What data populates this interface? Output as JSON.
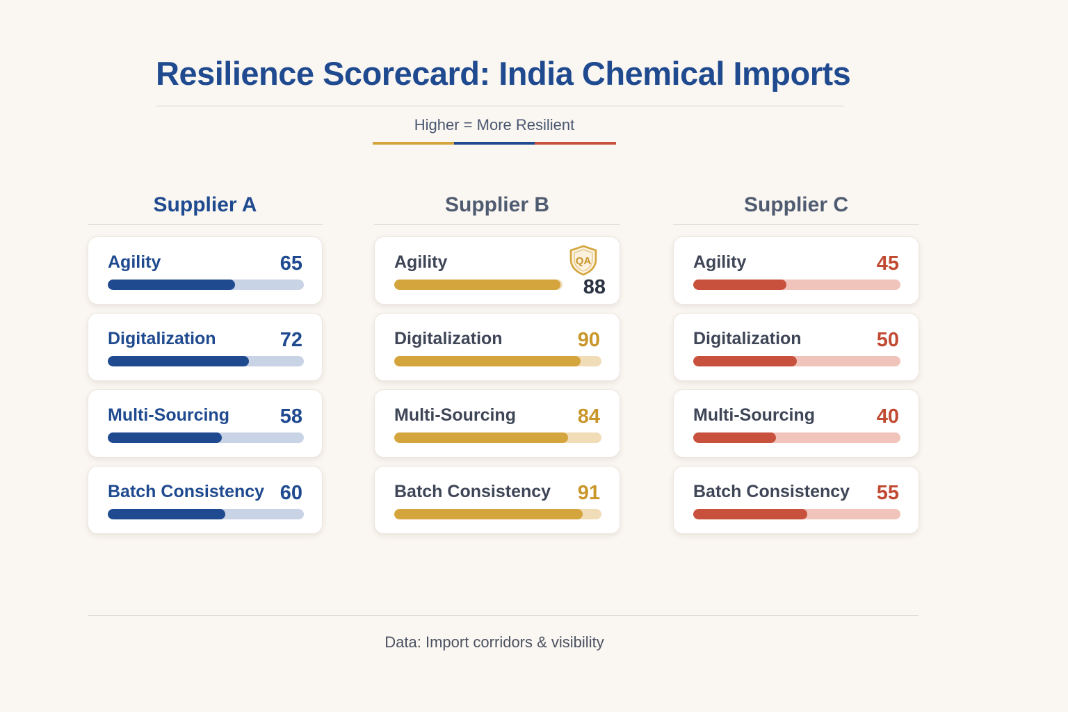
{
  "header": {
    "title": "Resilience Scorecard: India Chemical Imports",
    "subtitle": "Higher = More Resilient",
    "rule_colors": [
      "#d4a53d",
      "#1f4a8f",
      "#c8513d"
    ]
  },
  "badge": {
    "label": "QA",
    "icon": "shield-qa-icon"
  },
  "footer": {
    "note": "Data: Import corridors & visibility"
  },
  "chart_data": {
    "type": "bar",
    "title": "Resilience Scorecard: India Chemical Imports",
    "subtitle": "Higher = More Resilient",
    "categories": [
      "Agility",
      "Digitalization",
      "Multi-Sourcing",
      "Batch Consistency"
    ],
    "ylim": [
      0,
      100
    ],
    "series": [
      {
        "name": "Supplier A",
        "values": [
          65,
          72,
          58,
          60
        ],
        "color": "#1f4a8f",
        "track": "#c9d3e6",
        "head_color": "#1f4a8f",
        "label_color": "#1f4a8f",
        "value_color": "#1f4a8f"
      },
      {
        "name": "Supplier B",
        "values": [
          88,
          90,
          84,
          91
        ],
        "color": "#d4a53d",
        "track": "#f1dcb8",
        "head_color": "#4f5b70",
        "label_color": "#3e4556",
        "value_color": "#c9962a",
        "badged_index": 0
      },
      {
        "name": "Supplier C",
        "values": [
          45,
          50,
          40,
          55
        ],
        "color": "#c8513d",
        "track": "#f0c4bb",
        "head_color": "#4f5b70",
        "label_color": "#3e4556",
        "value_color": "#c14a32"
      }
    ]
  }
}
